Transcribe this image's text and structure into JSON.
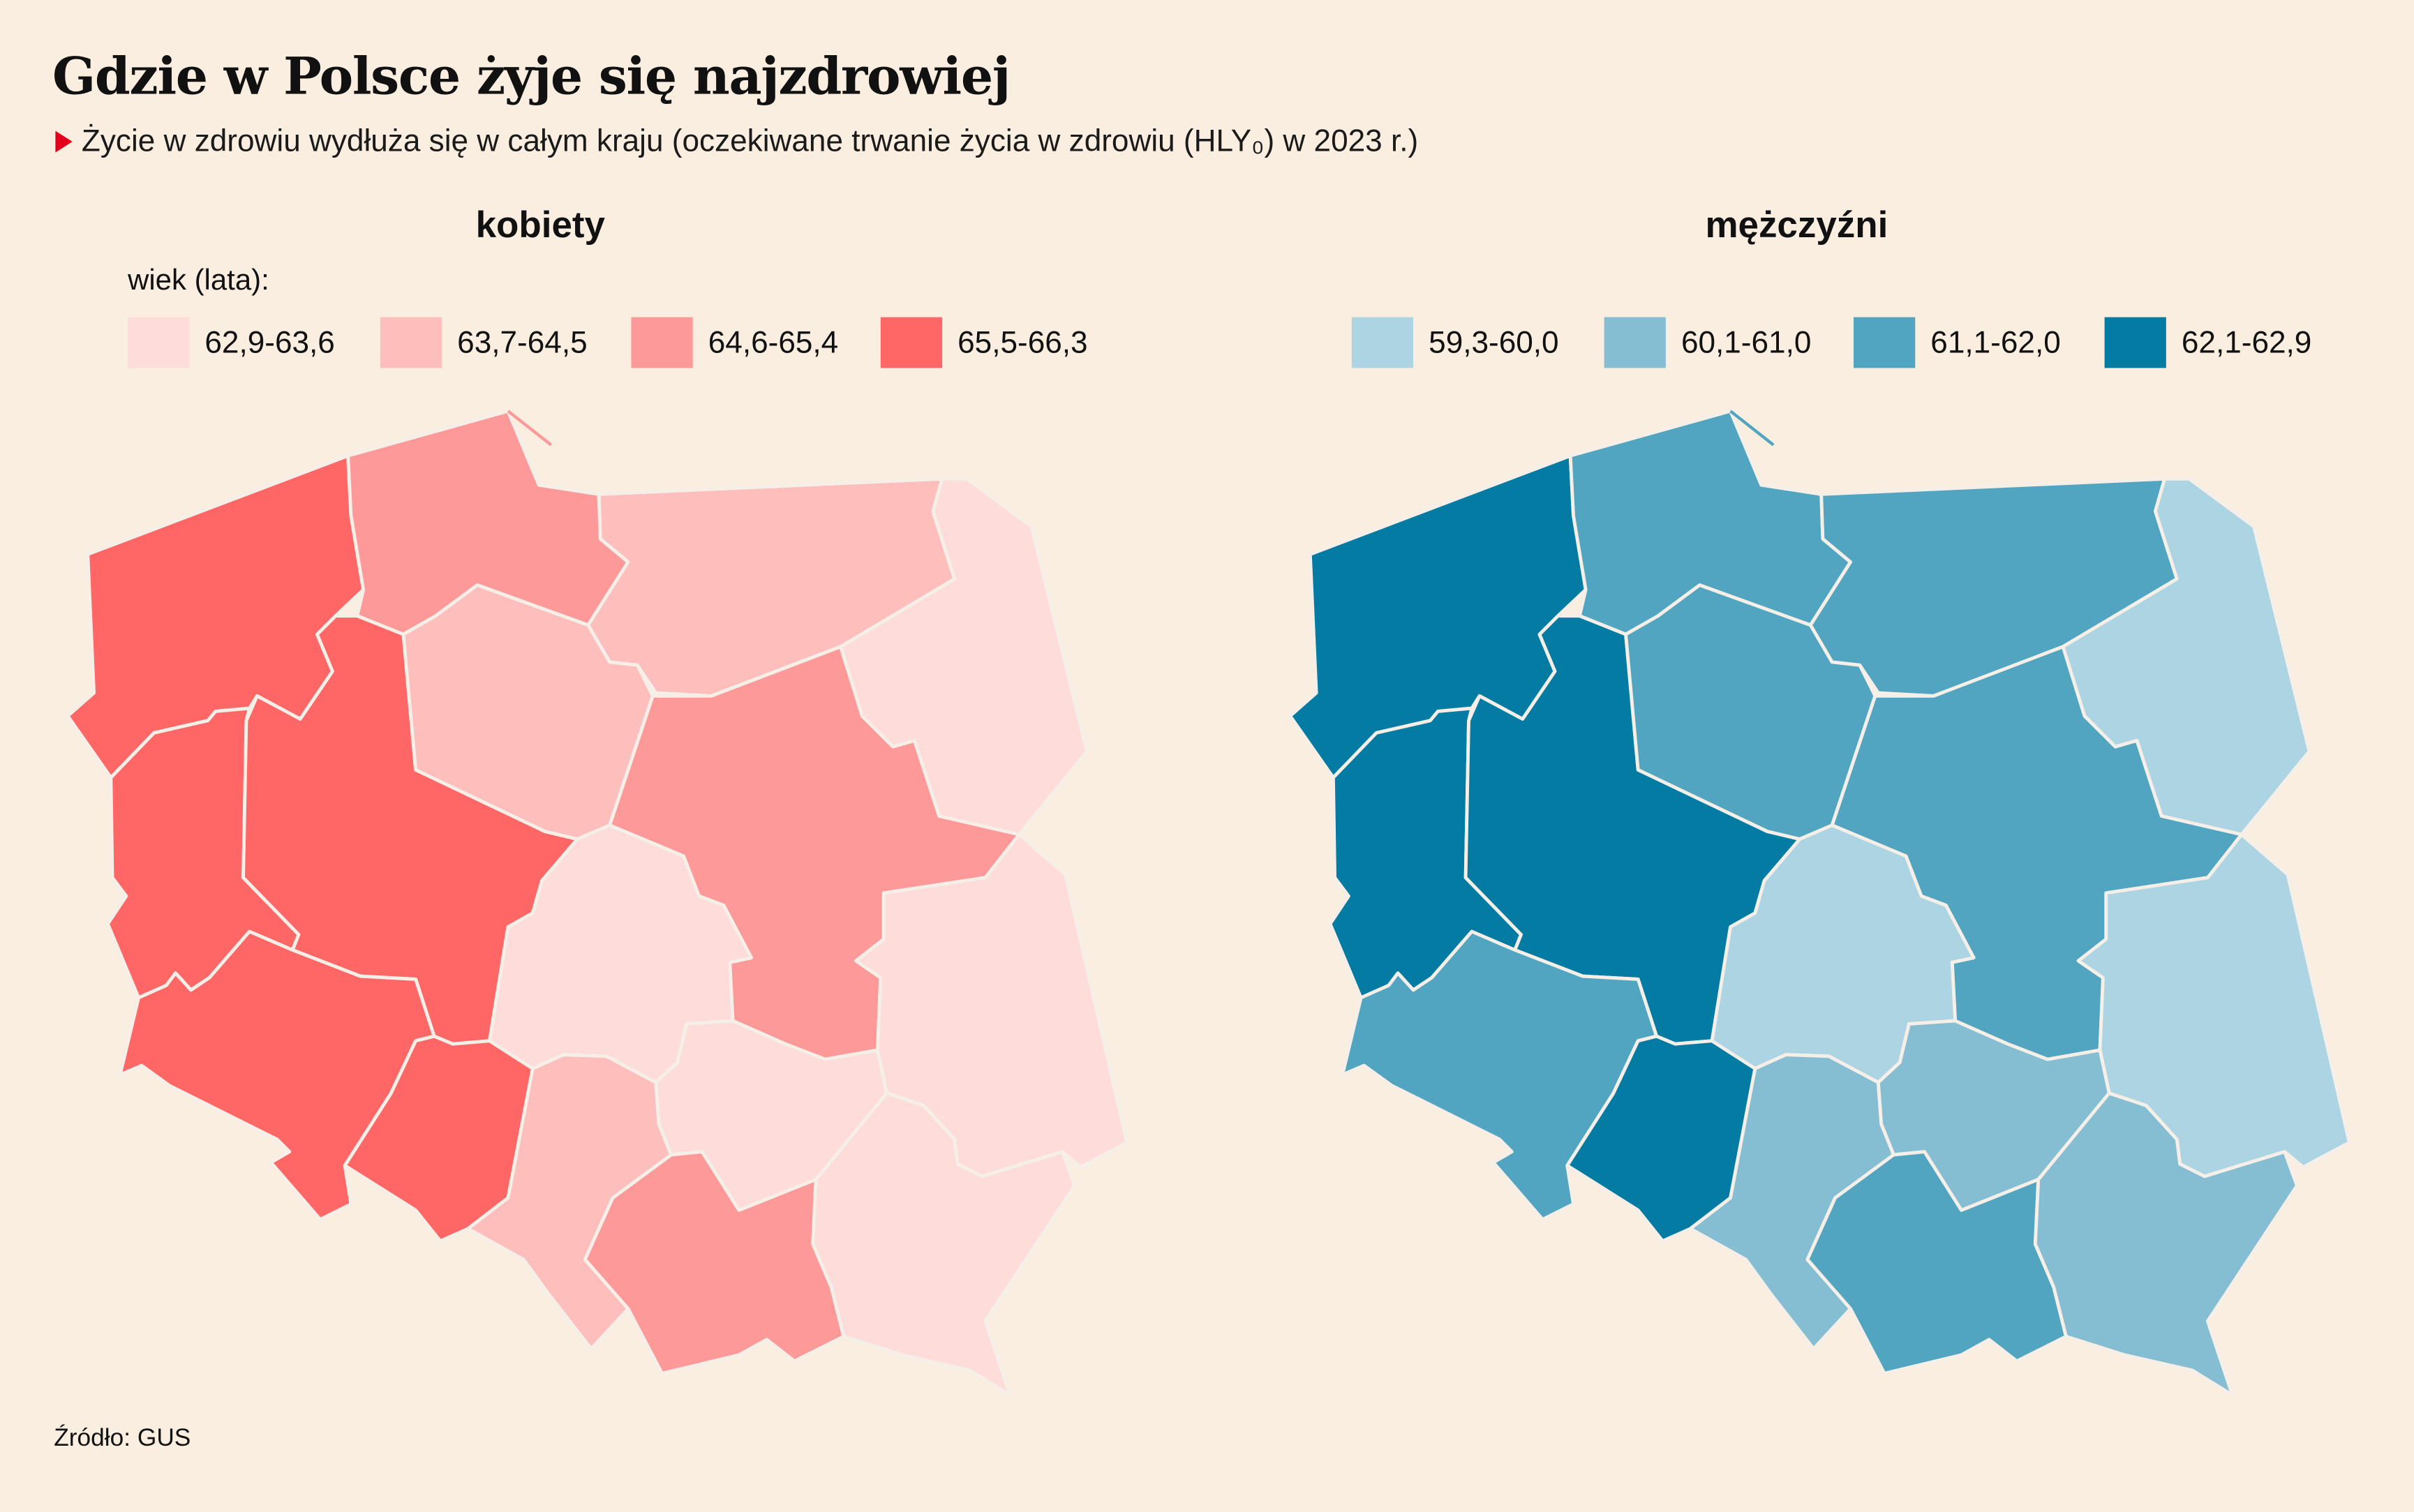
{
  "title": "Gdzie w Polsce żyje się najzdrowiej",
  "subtitle": "Życie w zdrowiu wydłuża się w całym kraju (oczekiwane trwanie życia w zdrowiu (HLY₀) w 2023 r.)",
  "legend_caption": "wiek (lata):",
  "source": "Źródło: GUS",
  "women": {
    "title": "kobiety",
    "legend": [
      {
        "label": "62,9-63,6",
        "color": "#fddcda"
      },
      {
        "label": "63,7-64,5",
        "color": "#fdbebc"
      },
      {
        "label": "64,6-65,4",
        "color": "#fd9a99"
      },
      {
        "label": "65,5-66,3",
        "color": "#ff6666"
      }
    ],
    "classes": {
      "zachodniopomorskie": 3,
      "pomorskie": 2,
      "warminsko-mazurskie": 1,
      "podlaskie": 0,
      "lubuskie": 3,
      "wielkopolskie": 3,
      "kujawsko-pomorskie": 1,
      "mazowieckie": 2,
      "dolnoslaskie": 3,
      "opolskie": 3,
      "lodzkie": 0,
      "lubelskie": 0,
      "slaskie": 1,
      "swietokrzyskie": 0,
      "malopolskie": 2,
      "podkarpackie": 0
    }
  },
  "men": {
    "title": "mężczyźni",
    "legend": [
      {
        "label": "59,3-60,0",
        "color": "#acd4e2"
      },
      {
        "label": "60,1-61,0",
        "color": "#85bdd2"
      },
      {
        "label": "61,1-62,0",
        "color": "#52a5c0"
      },
      {
        "label": "62,1-62,9",
        "color": "#047ba3"
      }
    ],
    "classes": {
      "zachodniopomorskie": 3,
      "pomorskie": 2,
      "warminsko-mazurskie": 2,
      "podlaskie": 0,
      "lubuskie": 3,
      "wielkopolskie": 3,
      "kujawsko-pomorskie": 2,
      "mazowieckie": 2,
      "dolnoslaskie": 2,
      "opolskie": 3,
      "lodzkie": 0,
      "lubelskie": 0,
      "slaskie": 1,
      "swietokrzyskie": 1,
      "malopolskie": 2,
      "podkarpackie": 1
    }
  }
}
